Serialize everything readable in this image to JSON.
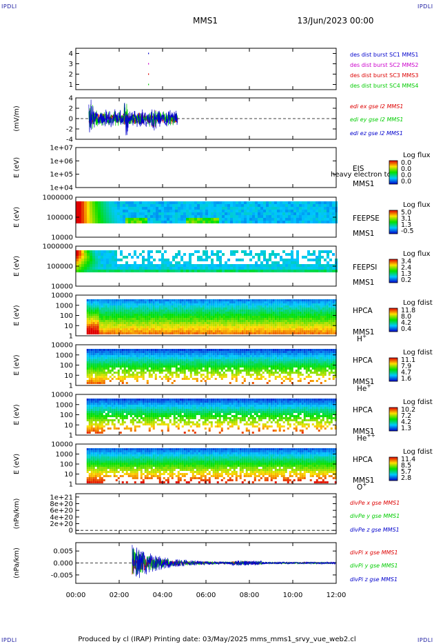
{
  "corner_label": "IPDLI",
  "header": {
    "title": "MMS1",
    "date": "13/Jun/2023 00:00"
  },
  "footer": {
    "text": "Produced by cl (IRAP)    Printing date: 03/May/2025    mms_mms1_srvy_vue_web2.cl"
  },
  "colors": {
    "red": "#dd0000",
    "green": "#00cc00",
    "blue": "#0000cc",
    "magenta": "#cc00cc",
    "navy": "#1a1aa0"
  },
  "chart_data": [
    {
      "id": "panel-burst",
      "type": "scatter",
      "ylim": [
        0.5,
        4.5
      ],
      "yticks": [
        "1",
        "2",
        "3",
        "4"
      ],
      "ytick_values": [
        1,
        2,
        3,
        4
      ],
      "series": [
        {
          "name": "des dist burst SC1 MMS1",
          "color": "#0000cc",
          "points": [
            [
              3.35,
              4
            ]
          ]
        },
        {
          "name": "des dist burst SC2 MMS2",
          "color": "#cc00cc",
          "points": [
            [
              3.35,
              3
            ]
          ]
        },
        {
          "name": "des dist burst SC3 MMS3",
          "color": "#dd0000",
          "points": [
            [
              3.35,
              2
            ]
          ]
        },
        {
          "name": "des dist burst SC4 MMS4",
          "color": "#00cc00",
          "points": [
            [
              3.35,
              1
            ]
          ]
        }
      ]
    },
    {
      "id": "panel-edi",
      "type": "line",
      "ylabel": "(mV/m)",
      "ylim": [
        -4,
        4
      ],
      "yticks": [
        "4",
        "2",
        "0",
        "-2",
        "-4"
      ],
      "ytick_values": [
        4,
        2,
        0,
        -2,
        -4
      ],
      "active_intervals": [
        [
          0.6,
          4.45
        ],
        [
          4.45,
          4.7
        ]
      ],
      "series": [
        {
          "name": "edi ex gse l2 MMS1",
          "color": "#dd0000",
          "amplitude": 1.2
        },
        {
          "name": "edi ey gse l2 MMS1",
          "color": "#00cc00",
          "amplitude": 1.6
        },
        {
          "name": "edi ez gse l2 MMS1",
          "color": "#0000cc",
          "amplitude": 2.0
        }
      ]
    },
    {
      "id": "panel-eis",
      "type": "heatmap",
      "ylabel": "E (eV)",
      "yticks": [
        "1e+07",
        "1e+06",
        "1e+05",
        "1e+04"
      ],
      "ytick_values": [
        7,
        6,
        5,
        4
      ],
      "labels": [
        "EIS",
        "MMS1"
      ],
      "overlay_text": "heavy electron to",
      "colorbar": {
        "title": "Log flux",
        "values": [
          "0.0",
          "0.0",
          "0.0",
          "0.0"
        ]
      }
    },
    {
      "id": "panel-feeps-e",
      "type": "heatmap",
      "ylabel": "E (eV)",
      "yticks": [
        "1000000",
        "100000",
        "10000"
      ],
      "ytick_values": [
        6,
        5,
        4
      ],
      "labels": [
        "FEEPSE",
        "MMS1"
      ],
      "colorbar": {
        "title": "Log flux",
        "values": [
          "5.0",
          "3.1",
          "1.3",
          "-0.5"
        ]
      }
    },
    {
      "id": "panel-feeps-i",
      "type": "heatmap",
      "ylabel": "E (eV)",
      "yticks": [
        "1000000",
        "100000",
        "10000"
      ],
      "ytick_values": [
        6,
        5,
        4
      ],
      "labels": [
        "FEEPSI",
        "MMS1"
      ],
      "colorbar": {
        "title": "Log flux",
        "values": [
          "3.4",
          "2.4",
          "1.3",
          "0.2"
        ]
      }
    },
    {
      "id": "panel-hpca-h",
      "type": "heatmap",
      "ylabel": "E (eV)",
      "yticks": [
        "10000",
        "1000",
        "100",
        "10",
        "1"
      ],
      "ytick_values": [
        4,
        3,
        2,
        1,
        0
      ],
      "labels": [
        "HPCA",
        "MMS1"
      ],
      "species": "H",
      "species_sup": "+",
      "colorbar": {
        "title": "Log fdist",
        "values": [
          "11.8",
          "8.0",
          "4.2",
          "0.4"
        ]
      }
    },
    {
      "id": "panel-hpca-he",
      "type": "heatmap",
      "ylabel": "E (eV)",
      "yticks": [
        "10000",
        "1000",
        "100",
        "10",
        "1"
      ],
      "ytick_values": [
        4,
        3,
        2,
        1,
        0
      ],
      "labels": [
        "HPCA",
        "MMS1"
      ],
      "species": "He",
      "species_sup": "+",
      "colorbar": {
        "title": "Log fdist",
        "values": [
          "11.1",
          "7.9",
          "4.7",
          "1.6"
        ]
      }
    },
    {
      "id": "panel-hpca-he2",
      "type": "heatmap",
      "ylabel": "E (eV)",
      "yticks": [
        "10000",
        "1000",
        "100",
        "10",
        "1"
      ],
      "ytick_values": [
        4,
        3,
        2,
        1,
        0
      ],
      "labels": [
        "HPCA",
        "MMS1"
      ],
      "species": "He",
      "species_sup": "++",
      "colorbar": {
        "title": "Log fdist",
        "values": [
          "10.2",
          "7.2",
          "4.2",
          "1.3"
        ]
      }
    },
    {
      "id": "panel-hpca-o",
      "type": "heatmap",
      "ylabel": "E (eV)",
      "yticks": [
        "10000",
        "1000",
        "100",
        "10",
        "1"
      ],
      "ytick_values": [
        4,
        3,
        2,
        1,
        0
      ],
      "labels": [
        "HPCA",
        "MMS1"
      ],
      "species": "O",
      "species_sup": "+",
      "colorbar": {
        "title": "Log fdist",
        "values": [
          "11.4",
          "8.5",
          "5.7",
          "2.8"
        ]
      }
    },
    {
      "id": "panel-divpe",
      "type": "line",
      "ylabel": "(nPa/km)",
      "ylim": [
        -1e+20,
        1.1e+21
      ],
      "yticks": [
        "1e+21",
        "8e+20",
        "6e+20",
        "4e+20",
        "2e+20",
        "0"
      ],
      "ytick_values": [
        1e+21,
        8e+20,
        6e+20,
        4e+20,
        2e+20,
        0
      ],
      "series": [
        {
          "name": "divPe x gse MMS1",
          "color": "#dd0000"
        },
        {
          "name": "divPe y gse MMS1",
          "color": "#00cc00"
        },
        {
          "name": "divPe z gse MMS1",
          "color": "#0000cc"
        }
      ]
    },
    {
      "id": "panel-divpi",
      "type": "line",
      "ylabel": "(nPa/km)",
      "ylim": [
        -0.0085,
        0.0085
      ],
      "yticks": [
        "0.005",
        "0.000",
        "-0.005"
      ],
      "ytick_values": [
        0.005,
        0,
        -0.005
      ],
      "active_intervals": [
        [
          2.6,
          12.0
        ]
      ],
      "series": [
        {
          "name": "divPi x gse MMS1",
          "color": "#dd0000",
          "amplitude": 0.0007
        },
        {
          "name": "divPi y gse MMS1",
          "color": "#00cc00",
          "amplitude": 0.0009
        },
        {
          "name": "divPi z gse MMS1",
          "color": "#0000cc",
          "amplitude": 0.0012
        }
      ]
    }
  ],
  "xaxis": {
    "xlim": [
      0,
      12
    ],
    "ticks": [
      "00:00",
      "02:00",
      "04:00",
      "06:00",
      "08:00",
      "10:00",
      "12:00"
    ],
    "tick_values": [
      0,
      2,
      4,
      6,
      8,
      10,
      12
    ]
  }
}
